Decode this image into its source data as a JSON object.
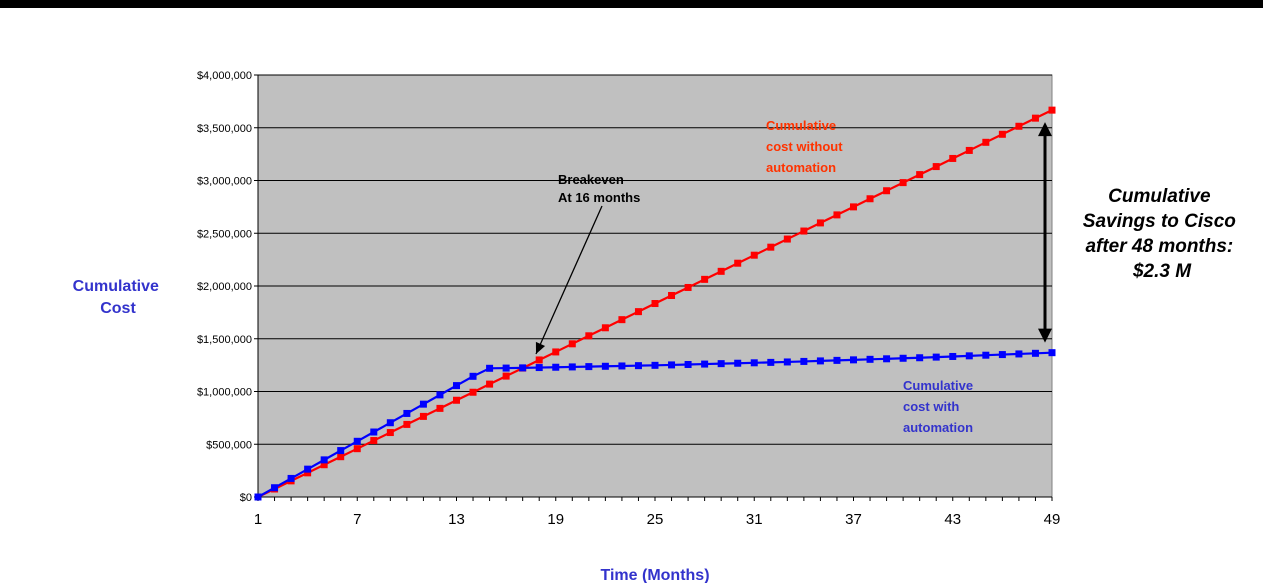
{
  "chart_data": {
    "type": "line",
    "title": "",
    "xlabel": "Time (Months)",
    "ylabel": "Cumulative Cost",
    "ylabel_lines": [
      "Cumulative",
      "Cost"
    ],
    "ylim": [
      0,
      4000000
    ],
    "xlim": [
      1,
      49
    ],
    "y_ticks": [
      {
        "value": 0,
        "label": "$0"
      },
      {
        "value": 500000,
        "label": "$500,000"
      },
      {
        "value": 1000000,
        "label": "$1,000,000"
      },
      {
        "value": 1500000,
        "label": "$1,500,000"
      },
      {
        "value": 2000000,
        "label": "$2,000,000"
      },
      {
        "value": 2500000,
        "label": "$2,500,000"
      },
      {
        "value": 3000000,
        "label": "$3,000,000"
      },
      {
        "value": 3500000,
        "label": "$3,500,000"
      },
      {
        "value": 4000000,
        "label": "$4,000,000"
      }
    ],
    "x_ticks": [
      {
        "value": 1,
        "label": "1"
      },
      {
        "value": 7,
        "label": "7"
      },
      {
        "value": 13,
        "label": "13"
      },
      {
        "value": 19,
        "label": "19"
      },
      {
        "value": 25,
        "label": "25"
      },
      {
        "value": 31,
        "label": "31"
      },
      {
        "value": 37,
        "label": "37"
      },
      {
        "value": 43,
        "label": "43"
      },
      {
        "value": 49,
        "label": "49"
      }
    ],
    "x": [
      1,
      2,
      3,
      4,
      5,
      6,
      7,
      8,
      9,
      10,
      11,
      12,
      13,
      14,
      15,
      16,
      17,
      18,
      19,
      20,
      21,
      22,
      23,
      24,
      25,
      26,
      27,
      28,
      29,
      30,
      31,
      32,
      33,
      34,
      35,
      36,
      37,
      38,
      39,
      40,
      41,
      42,
      43,
      44,
      45,
      46,
      47,
      48,
      49
    ],
    "grid": true,
    "plot_background": "#c0c0c0",
    "series": [
      {
        "name": "Cumulative cost without automation",
        "label_lines": [
          "Cumulative",
          "cost without",
          "automation"
        ],
        "color": "#ff0000",
        "values": [
          0,
          76000,
          153000,
          229000,
          306000,
          382000,
          458000,
          535000,
          611000,
          688000,
          764000,
          840000,
          917000,
          993000,
          1070000,
          1146000,
          1222000,
          1299000,
          1375000,
          1452000,
          1528000,
          1604000,
          1681000,
          1757000,
          1834000,
          1910000,
          1986000,
          2063000,
          2139000,
          2216000,
          2292000,
          2368000,
          2445000,
          2521000,
          2598000,
          2674000,
          2750000,
          2827000,
          2903000,
          2980000,
          3056000,
          3132000,
          3209000,
          3285000,
          3362000,
          3438000,
          3514000,
          3591000,
          3667000
        ]
      },
      {
        "name": "Cumulative cost with automation",
        "label_lines": [
          "Cumulative",
          "cost with",
          "automation"
        ],
        "color": "#0000ff",
        "values": [
          0,
          88000,
          176000,
          264000,
          352000,
          440000,
          528000,
          616000,
          704000,
          792000,
          880000,
          968000,
          1056000,
          1144000,
          1220000,
          1222000,
          1224000,
          1227000,
          1230000,
          1233000,
          1236000,
          1239000,
          1242000,
          1245000,
          1248000,
          1252000,
          1256000,
          1260000,
          1264000,
          1268000,
          1272000,
          1276000,
          1280000,
          1285000,
          1290000,
          1295000,
          1300000,
          1305000,
          1310000,
          1315000,
          1320000,
          1326000,
          1332000,
          1338000,
          1344000,
          1350000,
          1356000,
          1362000,
          1368000
        ]
      }
    ],
    "annotations": {
      "breakeven_lines": [
        "Breakeven",
        "At 16 months"
      ],
      "savings_lines": [
        "Cumulative",
        "Savings to Cisco",
        "after 48 months:",
        "$2.3 M"
      ]
    }
  }
}
